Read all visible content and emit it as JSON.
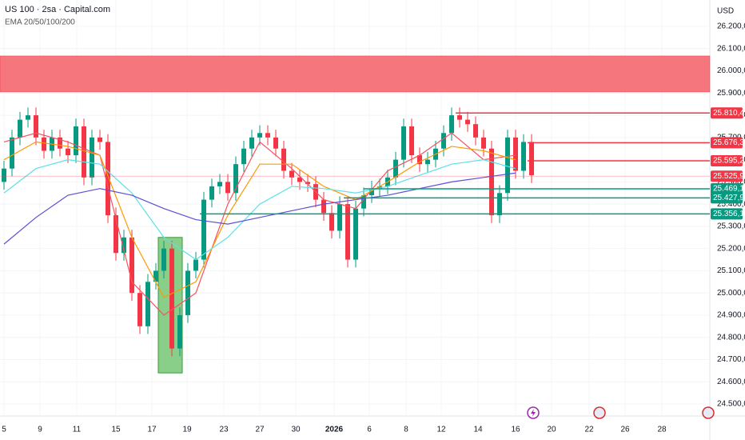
{
  "chart_data": {
    "type": "candlestick",
    "title": "US 100 · 2sa · Capital.com",
    "subtitle": "EMA 20/50/100/200",
    "currency": "USD",
    "up_color": "#089981",
    "down_color": "#f23645",
    "ylim": [
      24446,
      26319
    ],
    "xlim": [
      -0.5,
      88.3
    ],
    "yticks": [
      {
        "value": 24500,
        "label": "24.500,0"
      },
      {
        "value": 24600,
        "label": "24.600,0"
      },
      {
        "value": 24700,
        "label": "24.700,0"
      },
      {
        "value": 24800,
        "label": "24.800,0"
      },
      {
        "value": 24900,
        "label": "24.900,0"
      },
      {
        "value": 25000,
        "label": "25.000,0"
      },
      {
        "value": 25100,
        "label": "25.100,0"
      },
      {
        "value": 25200,
        "label": "25.200,0"
      },
      {
        "value": 25300,
        "label": "25.300,0"
      },
      {
        "value": 25400,
        "label": "25.400,0"
      },
      {
        "value": 25500,
        "label": "25.500,0"
      },
      {
        "value": 25600,
        "label": "25.600,0"
      },
      {
        "value": 25700,
        "label": "25.700,0"
      },
      {
        "value": 25800,
        "label": "25.800,0"
      },
      {
        "value": 25900,
        "label": "25.900,0"
      },
      {
        "value": 26000,
        "label": "26.000,0"
      },
      {
        "value": 26100,
        "label": "26.100,0"
      },
      {
        "value": 26200,
        "label": "26.200,0"
      }
    ],
    "xticks": [
      {
        "value": 0,
        "label": "5"
      },
      {
        "value": 4.5,
        "label": "9"
      },
      {
        "value": 9.1,
        "label": "11"
      },
      {
        "value": 14,
        "label": "15"
      },
      {
        "value": 18.5,
        "label": "17"
      },
      {
        "value": 22.9,
        "label": "19"
      },
      {
        "value": 27.5,
        "label": "23"
      },
      {
        "value": 32,
        "label": "27"
      },
      {
        "value": 36.5,
        "label": "30"
      },
      {
        "value": 41.3,
        "label": "2026"
      },
      {
        "value": 45.7,
        "label": "6"
      },
      {
        "value": 50.3,
        "label": "8"
      },
      {
        "value": 54.7,
        "label": "12"
      },
      {
        "value": 59.3,
        "label": "14"
      },
      {
        "value": 64,
        "label": "16"
      },
      {
        "value": 68.5,
        "label": "20"
      },
      {
        "value": 73.2,
        "label": "22"
      },
      {
        "value": 77.7,
        "label": "26"
      },
      {
        "value": 82.3,
        "label": "28"
      }
    ],
    "open": [
      25500,
      25560,
      25700,
      25780,
      25800,
      25700,
      25640,
      25700,
      25650,
      25620,
      25750,
      25520,
      25700,
      25680,
      25350,
      25180,
      25250,
      25000,
      24850,
      25050,
      25100,
      25200,
      24750,
      24900,
      25100,
      25150,
      25420,
      25480,
      25500,
      25450,
      25580,
      25650,
      25700,
      25720,
      25700,
      25650,
      25550,
      25520,
      25500,
      25490,
      25420,
      25360,
      25280,
      25400,
      25150,
      25380,
      25440,
      25470,
      25480,
      25520,
      25600,
      25750,
      25620,
      25580,
      25600,
      25650,
      25720,
      25800,
      25780,
      25760,
      25700,
      25650,
      25350,
      25450,
      25700,
      25550,
      25680
    ],
    "high": [
      25595,
      25735,
      25815,
      25835,
      25835,
      25735,
      25735,
      25735,
      25685,
      25785,
      25785,
      25735,
      25735,
      25715,
      25385,
      25285,
      25285,
      25035,
      25085,
      25135,
      25235,
      25235,
      24935,
      25135,
      25185,
      25455,
      25515,
      25535,
      25535,
      25615,
      25685,
      25735,
      25755,
      25755,
      25735,
      25685,
      25585,
      25555,
      25535,
      25525,
      25455,
      25395,
      25435,
      25435,
      25415,
      25475,
      25505,
      25515,
      25555,
      25635,
      25785,
      25785,
      25655,
      25635,
      25685,
      25755,
      25835,
      25835,
      25815,
      25795,
      25735,
      25685,
      25485,
      25735,
      25735,
      25715,
      25715
    ],
    "low": [
      25465,
      25525,
      25665,
      25745,
      25665,
      25605,
      25605,
      25615,
      25585,
      25585,
      25485,
      25485,
      25645,
      25315,
      25145,
      25145,
      24965,
      24815,
      24815,
      25015,
      25065,
      24715,
      24715,
      24865,
      25065,
      25115,
      25385,
      25445,
      25415,
      25415,
      25545,
      25615,
      25665,
      25665,
      25615,
      25515,
      25485,
      25465,
      25455,
      25385,
      25325,
      25245,
      25245,
      25115,
      25115,
      25345,
      25405,
      25435,
      25445,
      25485,
      25565,
      25585,
      25545,
      25545,
      25565,
      25615,
      25685,
      25745,
      25725,
      25665,
      25615,
      25315,
      25315,
      25415,
      25515,
      25515,
      25495
    ],
    "close": [
      25560,
      25700,
      25780,
      25800,
      25700,
      25640,
      25700,
      25650,
      25620,
      25750,
      25520,
      25700,
      25680,
      25350,
      25180,
      25250,
      25000,
      24850,
      25050,
      25100,
      25200,
      24750,
      24900,
      25100,
      25150,
      25420,
      25480,
      25500,
      25450,
      25580,
      25650,
      25700,
      25720,
      25700,
      25650,
      25550,
      25520,
      25500,
      25490,
      25420,
      25360,
      25280,
      25400,
      25150,
      25380,
      25440,
      25470,
      25480,
      25520,
      25600,
      25750,
      25620,
      25580,
      25600,
      25650,
      25720,
      25800,
      25780,
      25760,
      25700,
      25650,
      25350,
      25450,
      25700,
      25550,
      25680,
      25530
    ],
    "ema_x": [
      0,
      4,
      8,
      12,
      16,
      20,
      24,
      28,
      32,
      36,
      40,
      44,
      48,
      52,
      56,
      60,
      64
    ],
    "series": [
      {
        "name": "EMA 20",
        "color": "#f7525f",
        "values": [
          25680,
          25720,
          25680,
          25620,
          25050,
          24900,
          25000,
          25400,
          25680,
          25560,
          25420,
          25380,
          25550,
          25620,
          25720,
          25600,
          25620
        ]
      },
      {
        "name": "EMA 50",
        "color": "#ff9800",
        "values": [
          25600,
          25680,
          25660,
          25620,
          25250,
          24980,
          25050,
          25350,
          25580,
          25580,
          25480,
          25420,
          25500,
          25590,
          25660,
          25640,
          25600
        ]
      },
      {
        "name": "EMA 100",
        "color": "#5ee0e8",
        "values": [
          25450,
          25560,
          25600,
          25580,
          25450,
          25250,
          25150,
          25250,
          25400,
          25480,
          25470,
          25450,
          25480,
          25530,
          25580,
          25600,
          25560
        ]
      },
      {
        "name": "EMA 200",
        "color": "#5b4fd6",
        "values": [
          25220,
          25340,
          25440,
          25470,
          25440,
          25380,
          25330,
          25310,
          25340,
          25370,
          25400,
          25420,
          25440,
          25470,
          25500,
          25520,
          25540
        ]
      }
    ],
    "zone": {
      "low": 25905,
      "high": 26067,
      "color": "#f5777d"
    },
    "box": {
      "x0": 19.3,
      "x1": 22.3,
      "low": 24640,
      "high": 25250,
      "color": "#6cc36c"
    },
    "levels": [
      {
        "value": 25810.4,
        "label": "25.810,4",
        "color": "#f23645",
        "x_start": 56.5
      },
      {
        "value": 25676.3,
        "label": "25.676,3",
        "color": "#f23645",
        "x_start": 65.5
      },
      {
        "value": 25595.2,
        "label": "25.595,2",
        "color": "#f23645",
        "x_start": 65.5
      },
      {
        "value": 25525.9,
        "label": "25.525,9",
        "color": "#f23645",
        "x_start": -0.5
      },
      {
        "value": 25469.1,
        "label": "25.469,1",
        "color": "#089981",
        "x_start": 45
      },
      {
        "value": 25427.9,
        "label": "25.427,9",
        "color": "#089981",
        "x_start": 42.5
      },
      {
        "value": 25356.1,
        "label": "25.356,1",
        "color": "#089981",
        "x_start": 24.5
      }
    ]
  }
}
